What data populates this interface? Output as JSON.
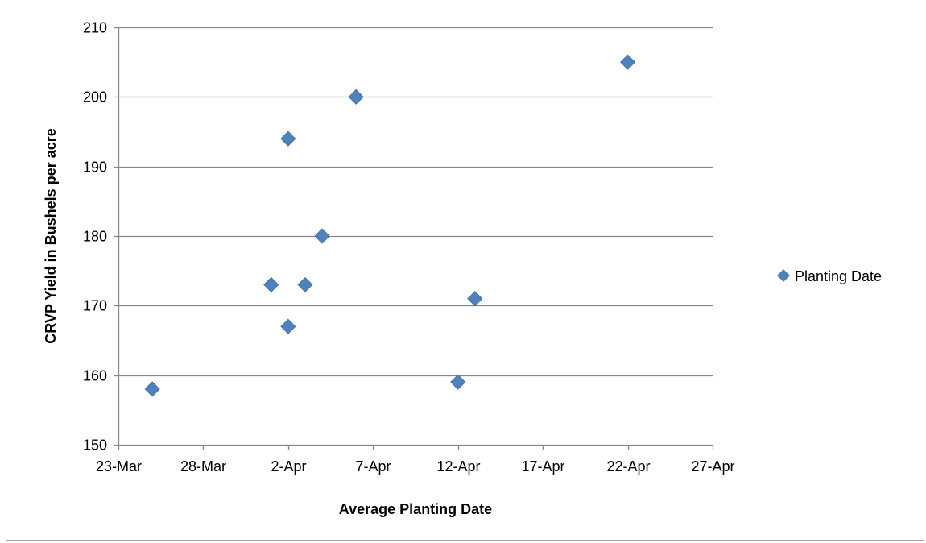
{
  "chart_data": {
    "type": "scatter",
    "title": "",
    "xlabel": "Average Planting Date",
    "ylabel": "CRVP Yield in Bushels per acre",
    "xlim": [
      "2024-03-23",
      "2024-04-27"
    ],
    "ylim": [
      150,
      210
    ],
    "x_tick_labels": [
      "23-Mar",
      "28-Mar",
      "2-Apr",
      "7-Apr",
      "12-Apr",
      "17-Apr",
      "22-Apr",
      "27-Apr"
    ],
    "y_tick_labels": [
      "150",
      "160",
      "170",
      "180",
      "190",
      "200",
      "210"
    ],
    "y_ticks": [
      150,
      160,
      170,
      180,
      190,
      200,
      210
    ],
    "grid": true,
    "legend_position": "right",
    "series": [
      {
        "name": "Planting Date",
        "color": "#4f81bd",
        "marker": "diamond",
        "points": [
          {
            "x": "2024-03-25",
            "y": 158
          },
          {
            "x": "2024-04-01",
            "y": 173
          },
          {
            "x": "2024-04-02",
            "y": 194
          },
          {
            "x": "2024-04-02",
            "y": 167
          },
          {
            "x": "2024-04-03",
            "y": 173
          },
          {
            "x": "2024-04-04",
            "y": 180
          },
          {
            "x": "2024-04-06",
            "y": 200
          },
          {
            "x": "2024-04-12",
            "y": 159
          },
          {
            "x": "2024-04-13",
            "y": 171
          },
          {
            "x": "2024-04-22",
            "y": 205
          }
        ]
      }
    ]
  }
}
